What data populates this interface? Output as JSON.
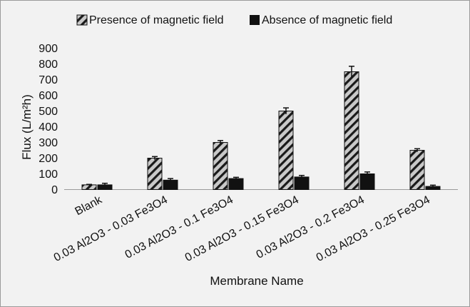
{
  "chart_data": {
    "type": "bar",
    "title": "",
    "xlabel": "Membrane Name",
    "ylabel": "Flux (L/m²h)",
    "ylim": [
      0,
      900
    ],
    "yticks": [
      "0",
      "100",
      "200",
      "300",
      "400",
      "500",
      "600",
      "700",
      "800",
      "900"
    ],
    "categories": [
      "Blank",
      "0.03 Al2O3 - 0.03 Fe3O4",
      "0.03 Al2O3 - 0.1 Fe3O4",
      "0.03 Al2O3 - 0.15 Fe3O4",
      "0.03 Al2O3 - 0.2 Fe3O4",
      "0.03 Al2O3 - 0.25 Fe3O4"
    ],
    "series": [
      {
        "name": "Presence of magnetic field",
        "values": [
          30,
          200,
          300,
          500,
          750,
          250
        ],
        "errors": [
          3,
          10,
          12,
          20,
          35,
          10
        ],
        "style": "hatched",
        "color": "#c8c8c8"
      },
      {
        "name": "Absence of magnetic field",
        "values": [
          30,
          60,
          70,
          80,
          100,
          20
        ],
        "errors": [
          10,
          10,
          8,
          10,
          12,
          8
        ],
        "style": "solid",
        "color": "#111111"
      }
    ],
    "legend_position": "top",
    "grid": false
  }
}
